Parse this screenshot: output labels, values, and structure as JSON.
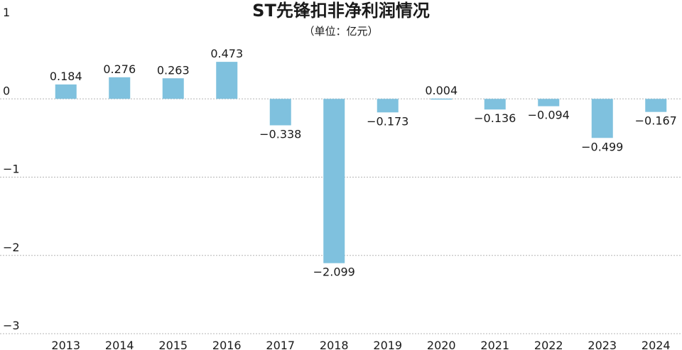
{
  "chart_data": {
    "type": "bar",
    "title": "ST先锋扣非净利润情况",
    "subtitle": "（单位：亿元）",
    "categories": [
      "2013",
      "2014",
      "2015",
      "2016",
      "2017",
      "2018",
      "2019",
      "2020",
      "2021",
      "2022",
      "2023",
      "2024"
    ],
    "values": [
      0.184,
      0.276,
      0.263,
      0.473,
      -0.338,
      -2.099,
      -0.173,
      0.004,
      -0.136,
      -0.094,
      -0.499,
      -0.167
    ],
    "data_labels": [
      "0.184",
      "0.276",
      "0.263",
      "0.473",
      "−0.338",
      "−2.099",
      "−0.173",
      "0.004",
      "−0.136",
      "−0.094",
      "−0.499",
      "−0.167"
    ],
    "yticks": [
      1,
      0,
      -1,
      -2,
      -3
    ],
    "ytick_labels": [
      "1",
      "0",
      "−1",
      "−2",
      "−3"
    ],
    "ylim": [
      -3,
      1
    ],
    "grid": true,
    "bar_color": "#7fc1de"
  }
}
